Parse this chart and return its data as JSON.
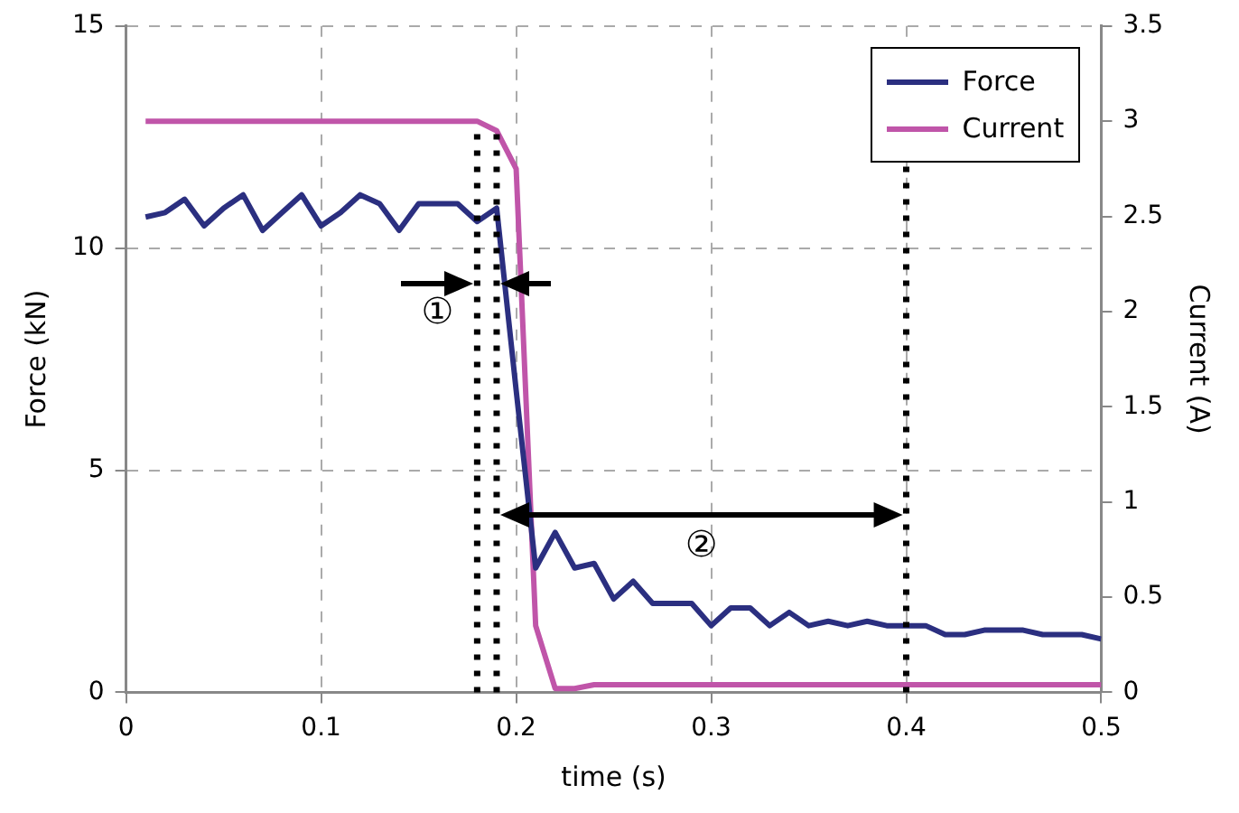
{
  "chart_data": {
    "type": "line",
    "xlabel": "time (s)",
    "ylabel": "Force (kN)",
    "y2label": "Current (A)",
    "x": [
      0.01,
      0.02,
      0.03,
      0.04,
      0.05,
      0.06,
      0.07,
      0.08,
      0.09,
      0.1,
      0.11,
      0.12,
      0.13,
      0.14,
      0.15,
      0.16,
      0.17,
      0.18,
      0.19,
      0.2,
      0.21,
      0.22,
      0.23,
      0.24,
      0.25,
      0.26,
      0.27,
      0.28,
      0.29,
      0.3,
      0.31,
      0.32,
      0.33,
      0.34,
      0.35,
      0.36,
      0.37,
      0.38,
      0.39,
      0.4,
      0.41,
      0.42,
      0.43,
      0.44,
      0.45,
      0.46,
      0.47,
      0.48,
      0.49,
      0.5
    ],
    "series": [
      {
        "name": "Force",
        "color": "#2b2f80",
        "values": [
          10.7,
          10.8,
          11.1,
          10.5,
          10.9,
          11.2,
          10.4,
          10.8,
          11.2,
          10.5,
          10.8,
          11.2,
          11.0,
          10.4,
          11.0,
          11.0,
          11.0,
          10.6,
          10.9,
          6.8,
          2.8,
          3.6,
          2.8,
          2.9,
          2.1,
          2.5,
          2.0,
          2.0,
          2.0,
          1.5,
          1.9,
          1.9,
          1.5,
          1.8,
          1.5,
          1.6,
          1.5,
          1.6,
          1.5,
          1.5,
          1.5,
          1.3,
          1.3,
          1.4,
          1.4,
          1.4,
          1.3,
          1.3,
          1.3,
          1.2
        ]
      },
      {
        "name": "Current",
        "color": "#c055a9",
        "axis": "y2",
        "values": [
          3.0,
          3.0,
          3.0,
          3.0,
          3.0,
          3.0,
          3.0,
          3.0,
          3.0,
          3.0,
          3.0,
          3.0,
          3.0,
          3.0,
          3.0,
          3.0,
          3.0,
          3.0,
          2.95,
          2.75,
          0.35,
          0.02,
          0.02,
          0.04,
          0.04,
          0.04,
          0.04,
          0.04,
          0.04,
          0.04,
          0.04,
          0.04,
          0.04,
          0.04,
          0.04,
          0.04,
          0.04,
          0.04,
          0.04,
          0.04,
          0.04,
          0.04,
          0.04,
          0.04,
          0.04,
          0.04,
          0.04,
          0.04,
          0.04,
          0.04
        ]
      }
    ],
    "xlim": [
      0,
      0.5
    ],
    "xticks": [
      0,
      0.1,
      0.2,
      0.3,
      0.4,
      0.5
    ],
    "ylim": [
      0,
      15
    ],
    "yticks": [
      0,
      5,
      10,
      15
    ],
    "y2lim": [
      0,
      3.5
    ],
    "y2ticks": [
      0,
      0.5,
      1,
      1.5,
      2,
      2.5,
      3,
      3.5
    ],
    "grid": true,
    "legend": "top right",
    "marker": "none",
    "line_style": "solid",
    "ref_lines": [
      {
        "axis": "x",
        "value": 0.18,
        "line_style": "dotted"
      },
      {
        "axis": "x",
        "value": 0.19,
        "line_style": "dotted"
      },
      {
        "axis": "x",
        "value": 0.4,
        "line_style": "dotted"
      }
    ],
    "annotations": [
      "①",
      "②"
    ]
  }
}
